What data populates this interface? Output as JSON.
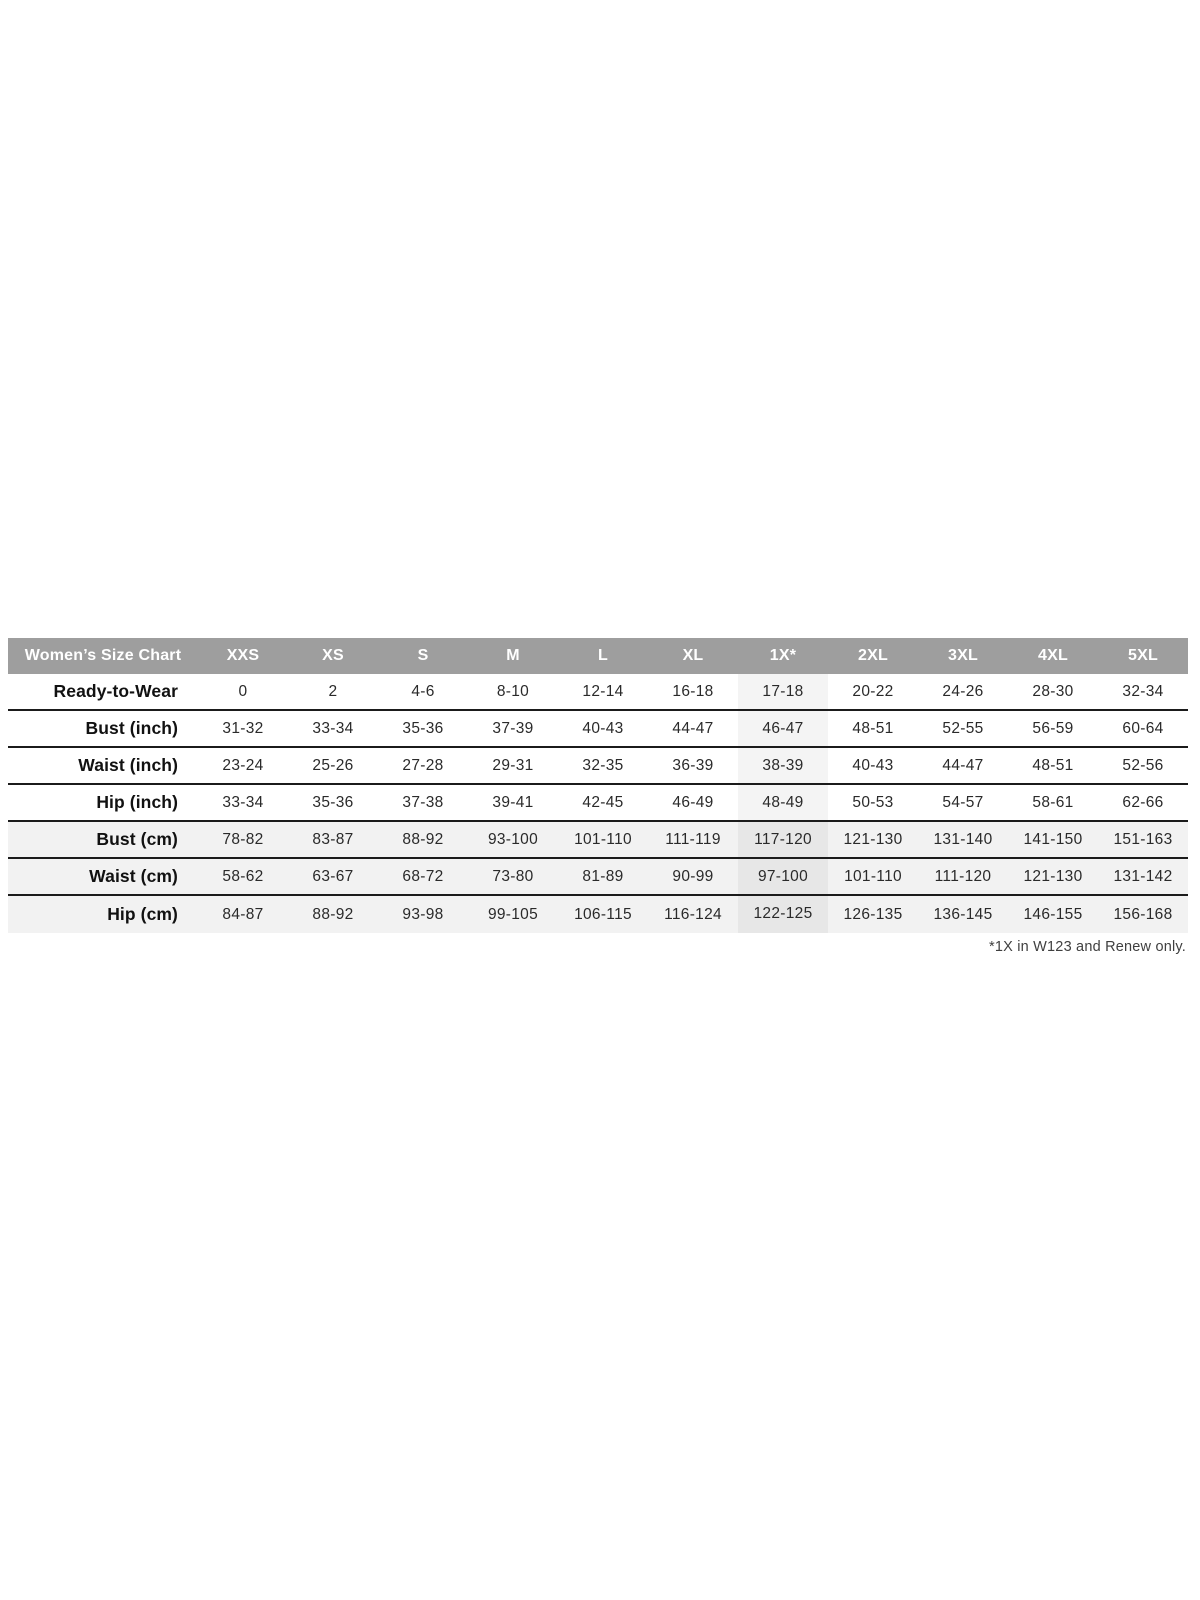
{
  "chart_data": {
    "type": "table",
    "title": "Women’s Size Chart",
    "header": [
      "Women’s Size Chart",
      "XXS",
      "XS",
      "S",
      "M",
      "L",
      "XL",
      "1X*",
      "2XL",
      "3XL",
      "4XL",
      "5XL"
    ],
    "rows": [
      {
        "label": "Ready-to-Wear",
        "values": [
          "0",
          "2",
          "4-6",
          "8-10",
          "12-14",
          "16-18",
          "17-18",
          "20-22",
          "24-26",
          "28-30",
          "32-34"
        ]
      },
      {
        "label": "Bust (inch)",
        "values": [
          "31-32",
          "33-34",
          "35-36",
          "37-39",
          "40-43",
          "44-47",
          "46-47",
          "48-51",
          "52-55",
          "56-59",
          "60-64"
        ]
      },
      {
        "label": "Waist (inch)",
        "values": [
          "23-24",
          "25-26",
          "27-28",
          "29-31",
          "32-35",
          "36-39",
          "38-39",
          "40-43",
          "44-47",
          "48-51",
          "52-56"
        ]
      },
      {
        "label": "Hip (inch)",
        "values": [
          "33-34",
          "35-36",
          "37-38",
          "39-41",
          "42-45",
          "46-49",
          "48-49",
          "50-53",
          "54-57",
          "58-61",
          "62-66"
        ]
      },
      {
        "label": "Bust (cm)",
        "values": [
          "78-82",
          "83-87",
          "88-92",
          "93-100",
          "101-110",
          "111-119",
          "117-120",
          "121-130",
          "131-140",
          "141-150",
          "151-163"
        ]
      },
      {
        "label": "Waist (cm)",
        "values": [
          "58-62",
          "63-67",
          "68-72",
          "73-80",
          "81-89",
          "90-99",
          "97-100",
          "101-110",
          "111-120",
          "121-130",
          "131-142"
        ]
      },
      {
        "label": "Hip (cm)",
        "values": [
          "84-87",
          "88-92",
          "93-98",
          "99-105",
          "106-115",
          "116-124",
          "122-125",
          "126-135",
          "136-145",
          "146-155",
          "156-168"
        ]
      }
    ],
    "shaded_row_indices": [
      4,
      5,
      6
    ],
    "highlighted_value_column_index": 6,
    "highlighted_column_label": "1X*",
    "footnote": "*1X in W123 and Renew only.",
    "legend_position": "none",
    "grid": "horizontal-rules"
  },
  "colors": {
    "header_bg": "#9e9e9e",
    "header_text": "#ffffff",
    "row_shade": "#f2f2f2",
    "highlight_light": "#f4f4f4",
    "highlight_dark": "#e7e7e7",
    "border": "#1b1b1b",
    "body_text": "#2a2a2a",
    "label_text": "#111111",
    "footnote_text": "#3f3f3f",
    "page_bg": "#ffffff"
  }
}
